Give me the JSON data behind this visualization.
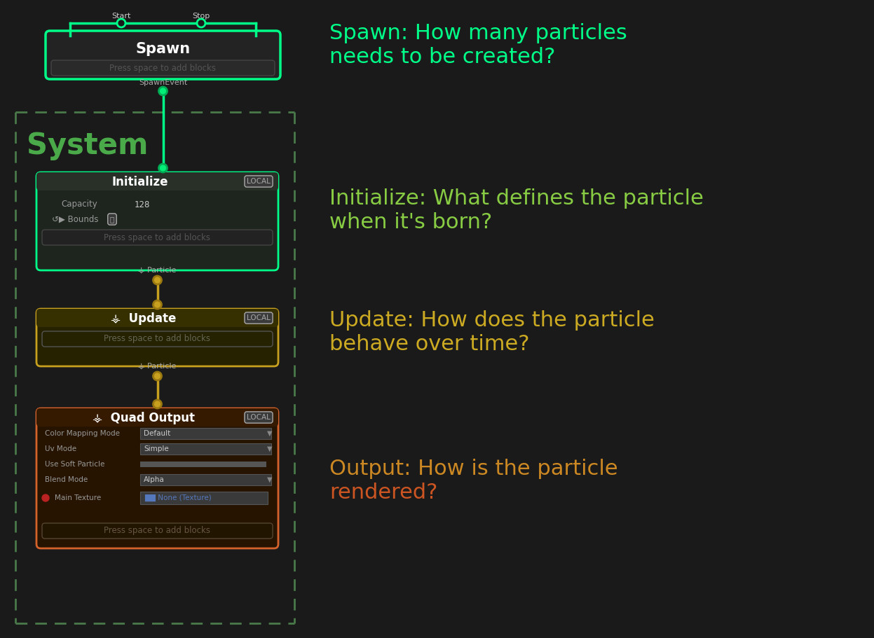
{
  "bg_color": "#1a1a1a",
  "system_border_color": "#4a7a4a",
  "spawn_border_color": "#00ff88",
  "initialize_border_color": "#00ff88",
  "update_border_color": "#c8a020",
  "output_border_color": "#d4622a",
  "connect_line_green": "#00ff88",
  "connect_line_orange": "#c8a020",
  "system_text_color": "#4aaa4a",
  "spawn_title_color": "#ffffff",
  "initialize_title_color": "#ffffff",
  "update_title_color": "#ffffff",
  "output_title_color": "#ffffff",
  "spawn_annotation_color": "#00ff88",
  "initialize_annotation_color": "#88cc44",
  "update_annotation_color": "#ccaa22",
  "output_annotation_color": "#cc8822",
  "output_annotation_color2": "#cc5522",
  "spawn_title": "Spawn",
  "initialize_title": "Initialize",
  "update_title": "Update",
  "output_title": "Quad Output",
  "system_label": "System",
  "spawn_annotation_line1": "Spawn: How many particles",
  "spawn_annotation_line2": "needs to be created?",
  "init_annotation_line1": "Initialize: What defines the particle",
  "init_annotation_line2": "when it's born?",
  "update_annotation_line1": "Update: How does the particle",
  "update_annotation_line2": "behave over time?",
  "output_annotation_line1": "Output: How is the particle",
  "output_annotation_line2": "rendered?",
  "press_space_text": "Press space to add blocks",
  "spawn_event_text": "SpawnEvent",
  "particle_text": "Particle",
  "start_text": "Start",
  "stop_text": "Stop",
  "capacity_label": "Capacity",
  "capacity_value": "128",
  "color_map_label": "Color Mapping Mode",
  "color_map_value": "Default",
  "uv_label": "Uv Mode",
  "uv_value": "Simple",
  "soft_label": "Use Soft Particle",
  "blend_label": "Blend Mode",
  "blend_value": "Alpha",
  "texture_label": "Main Texture",
  "texture_value": "None (Texture)",
  "local_badge": "LOCAL"
}
